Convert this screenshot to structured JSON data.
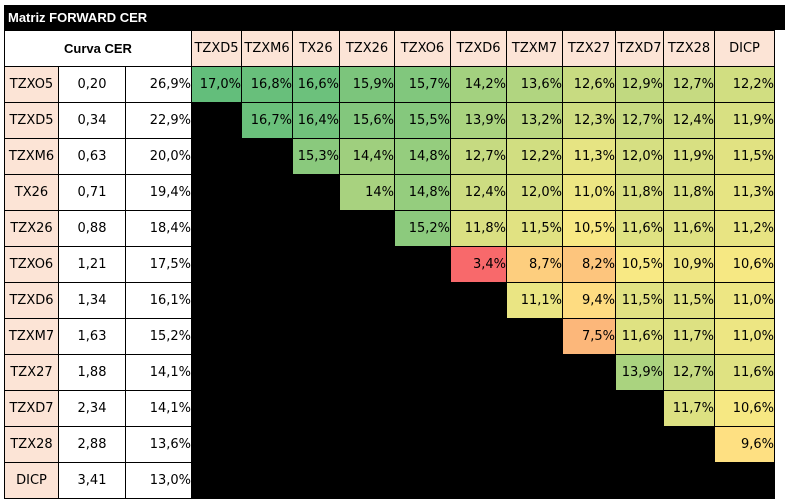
{
  "title": "Matriz FORWARD CER",
  "header_label": "Curva CER",
  "colors": {
    "header_bg": "#fce4d6",
    "blank_bg": "#000000",
    "scale_low": "#f8696b",
    "scale_mid": "#ffeb84",
    "scale_high": "#63be7b"
  },
  "scale_range": [
    3.4,
    17.0
  ],
  "columns": [
    "TZXD5",
    "TZXM6",
    "TX26",
    "TZX26",
    "TZXO6",
    "TZXD6",
    "TZXM7",
    "TZX27",
    "TZXD7",
    "TZX28",
    "DICP"
  ],
  "rows": [
    {
      "name": "TZXO5",
      "duration": "0,20",
      "rate": "26,9%",
      "cells": [
        "17,0%",
        "16,8%",
        "16,6%",
        "15,9%",
        "15,7%",
        "14,2%",
        "13,6%",
        "12,6%",
        "12,9%",
        "12,7%",
        "12,2%"
      ]
    },
    {
      "name": "TZXD5",
      "duration": "0,34",
      "rate": "22,9%",
      "cells": [
        "",
        "16,7%",
        "16,4%",
        "15,6%",
        "15,5%",
        "13,9%",
        "13,2%",
        "12,3%",
        "12,7%",
        "12,4%",
        "11,9%"
      ]
    },
    {
      "name": "TZXM6",
      "duration": "0,63",
      "rate": "20,0%",
      "cells": [
        "",
        "",
        "15,3%",
        "14,4%",
        "14,8%",
        "12,7%",
        "12,2%",
        "11,3%",
        "12,0%",
        "11,9%",
        "11,5%"
      ]
    },
    {
      "name": "TX26",
      "duration": "0,71",
      "rate": "19,4%",
      "cells": [
        "",
        "",
        "",
        "14%",
        "14,8%",
        "12,4%",
        "12,0%",
        "11,0%",
        "11,8%",
        "11,8%",
        "11,3%"
      ]
    },
    {
      "name": "TZX26",
      "duration": "0,88",
      "rate": "18,4%",
      "cells": [
        "",
        "",
        "",
        "",
        "15,2%",
        "11,8%",
        "11,5%",
        "10,5%",
        "11,6%",
        "11,6%",
        "11,2%"
      ]
    },
    {
      "name": "TZXO6",
      "duration": "1,21",
      "rate": "17,5%",
      "cells": [
        "",
        "",
        "",
        "",
        "",
        "3,4%",
        "8,7%",
        "8,2%",
        "10,5%",
        "10,9%",
        "10,6%"
      ]
    },
    {
      "name": "TZXD6",
      "duration": "1,34",
      "rate": "16,1%",
      "cells": [
        "",
        "",
        "",
        "",
        "",
        "",
        "11,1%",
        "9,4%",
        "11,5%",
        "11,5%",
        "11,0%"
      ]
    },
    {
      "name": "TZXM7",
      "duration": "1,63",
      "rate": "15,2%",
      "cells": [
        "",
        "",
        "",
        "",
        "",
        "",
        "",
        "7,5%",
        "11,6%",
        "11,7%",
        "11,0%"
      ]
    },
    {
      "name": "TZX27",
      "duration": "1,88",
      "rate": "14,1%",
      "cells": [
        "",
        "",
        "",
        "",
        "",
        "",
        "",
        "",
        "13,9%",
        "12,7%",
        "11,6%"
      ]
    },
    {
      "name": "TZXD7",
      "duration": "2,34",
      "rate": "14,1%",
      "cells": [
        "",
        "",
        "",
        "",
        "",
        "",
        "",
        "",
        "",
        "11,7%",
        "10,6%"
      ]
    },
    {
      "name": "TZX28",
      "duration": "2,88",
      "rate": "13,6%",
      "cells": [
        "",
        "",
        "",
        "",
        "",
        "",
        "",
        "",
        "",
        "",
        "9,6%"
      ]
    },
    {
      "name": "DICP",
      "duration": "3,41",
      "rate": "13,0%",
      "cells": [
        "",
        "",
        "",
        "",
        "",
        "",
        "",
        "",
        "",
        "",
        ""
      ]
    }
  ]
}
